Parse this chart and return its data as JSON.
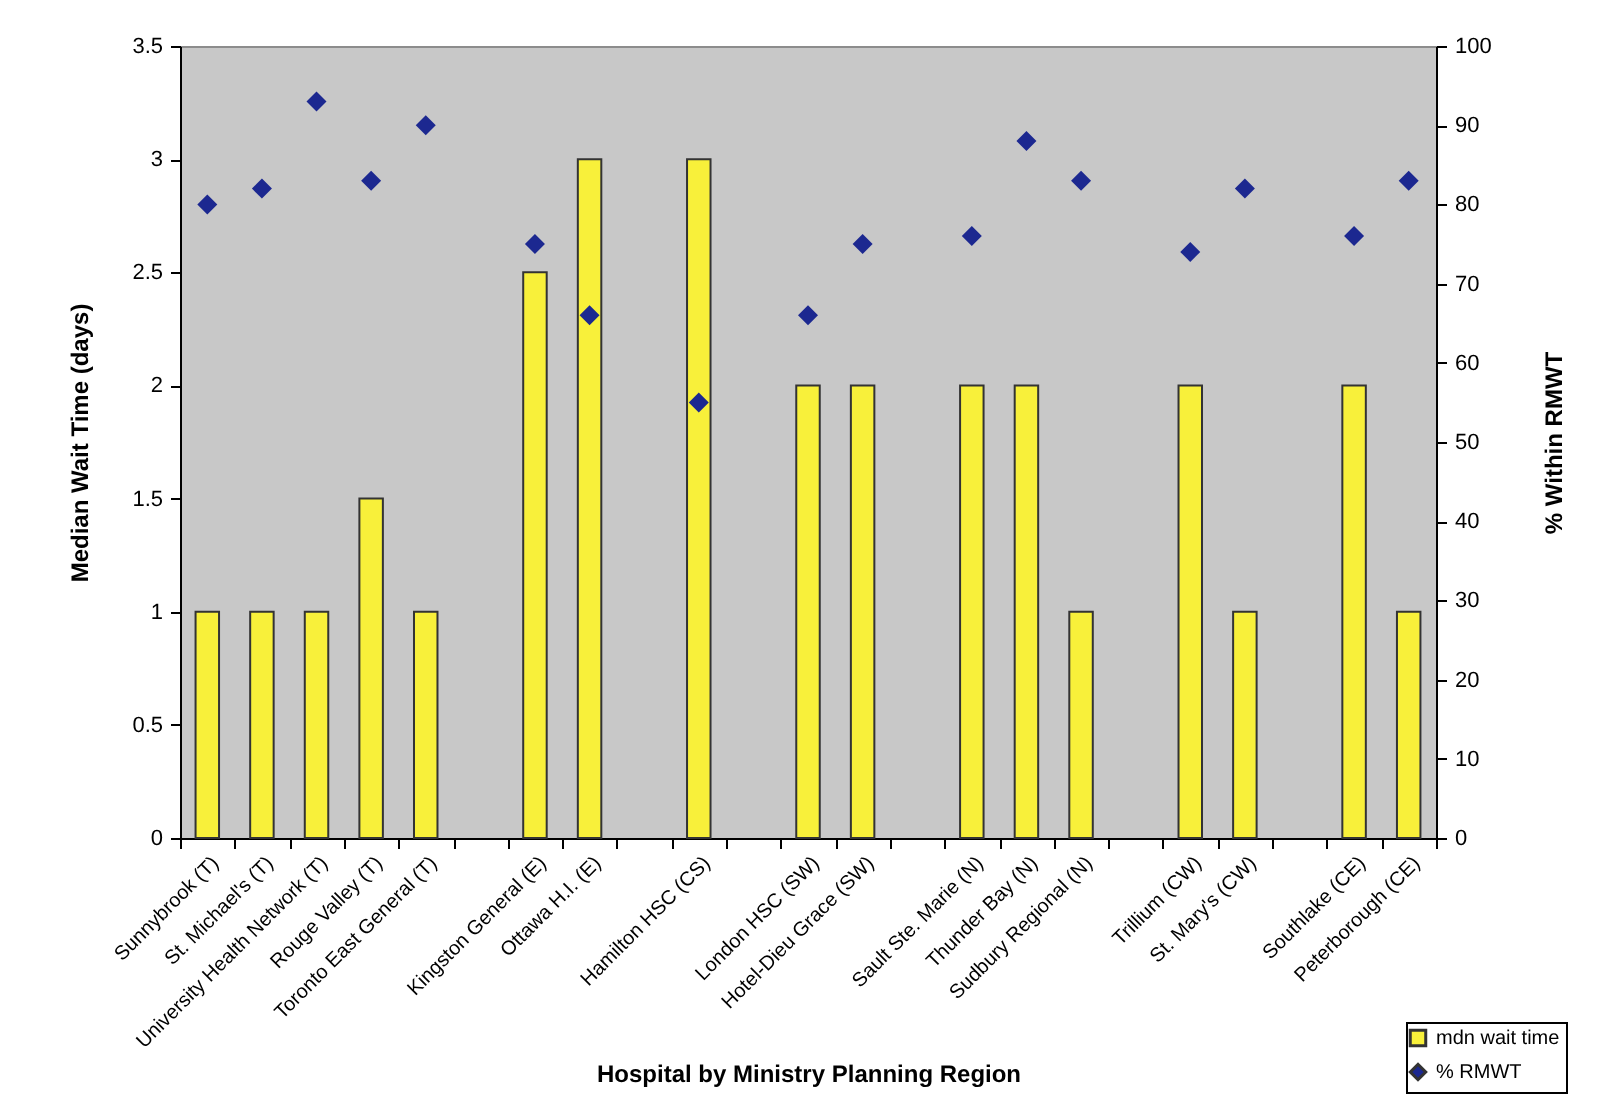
{
  "chart_data": {
    "type": "bar",
    "xlabel": "Hospital by Ministry Planning Region",
    "ylabel": "Median Wait Time (days)",
    "y2label": "% Within RMWT",
    "categories": [
      "Sunnybrook (T)",
      "St. Michael's (T)",
      "University Health Network (T)",
      "Rouge Valley (T)",
      "Toronto East General (T)",
      null,
      "Kingston General (E)",
      "Ottawa H.I. (E)",
      null,
      "Hamilton HSC (CS)",
      null,
      "London HSC (SW)",
      "Hotel-Dieu Grace (SW)",
      null,
      "Sault Ste. Marie (N)",
      "Thunder Bay (N)",
      "Sudbury Regional (N)",
      null,
      "Trillium (CW)",
      "St. Mary's (CW)",
      null,
      "Southlake (CE)",
      "Peterborough (CE)"
    ],
    "series": [
      {
        "name": "mdn wait time",
        "color": "#f8f03a",
        "values": [
          1,
          1,
          1,
          1.5,
          1,
          null,
          2.5,
          3,
          null,
          3,
          null,
          2,
          2,
          null,
          2,
          2,
          1,
          null,
          2,
          1,
          null,
          2,
          1
        ]
      },
      {
        "name": "% RMWT",
        "type": "scatter",
        "marker": "diamond",
        "axis": "y2",
        "color": "#1c2890",
        "values": [
          80,
          82,
          93,
          83,
          90,
          null,
          75,
          66,
          null,
          55,
          null,
          66,
          75,
          null,
          76,
          88,
          83,
          null,
          74,
          82,
          null,
          76,
          83
        ]
      }
    ],
    "ylim": [
      0,
      3.5
    ],
    "yticks": [
      0,
      0.5,
      1,
      1.5,
      2,
      2.5,
      3,
      3.5
    ],
    "y2lim": [
      0,
      100
    ],
    "y2ticks": [
      0,
      10,
      20,
      30,
      40,
      50,
      60,
      70,
      80,
      90,
      100
    ],
    "grid": false,
    "legend": "bottom right"
  }
}
